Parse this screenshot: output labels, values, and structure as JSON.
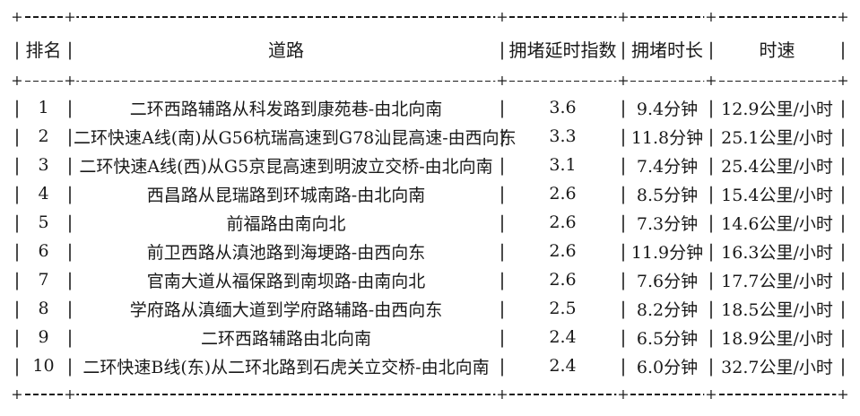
{
  "app": {
    "background_color": "#ffffff",
    "text_color": "#1a1a1a",
    "line_color": "#1a1a1a"
  },
  "table": {
    "name": "拥堵道路排名表",
    "border": {
      "corner": "+",
      "dash": "-",
      "pipe": "|"
    },
    "columns": [
      {
        "key": "rank",
        "label": "排名"
      },
      {
        "key": "road",
        "label": "道路"
      },
      {
        "key": "delay_index",
        "label": "拥堵延时指数"
      },
      {
        "key": "duration",
        "label": "拥堵时长"
      },
      {
        "key": "speed",
        "label": "时速"
      }
    ],
    "rows": [
      {
        "rank": "1",
        "road": "二环西路辅路从科发路到康苑巷-由北向南",
        "delay_index": "3.6",
        "duration": "9.4分钟",
        "speed": "12.9公里/小时"
      },
      {
        "rank": "2",
        "road": "二环快速A线(南)从G56杭瑞高速到G78汕昆高速-由西向东",
        "delay_index": "3.3",
        "duration": "11.8分钟",
        "speed": "25.1公里/小时"
      },
      {
        "rank": "3",
        "road": "二环快速A线(西)从G5京昆高速到明波立交桥-由北向南",
        "delay_index": "3.1",
        "duration": "7.4分钟",
        "speed": "25.4公里/小时"
      },
      {
        "rank": "4",
        "road": "西昌路从昆瑞路到环城南路-由北向南",
        "delay_index": "2.6",
        "duration": "8.5分钟",
        "speed": "15.4公里/小时"
      },
      {
        "rank": "5",
        "road": "前福路由南向北",
        "delay_index": "2.6",
        "duration": "7.3分钟",
        "speed": "14.6公里/小时"
      },
      {
        "rank": "6",
        "road": "前卫西路从滇池路到海埂路-由西向东",
        "delay_index": "2.6",
        "duration": "11.9分钟",
        "speed": "16.3公里/小时"
      },
      {
        "rank": "7",
        "road": "官南大道从福保路到南坝路-由南向北",
        "delay_index": "2.6",
        "duration": "7.6分钟",
        "speed": "17.7公里/小时"
      },
      {
        "rank": "8",
        "road": "学府路从滇缅大道到学府路辅路-由西向东",
        "delay_index": "2.5",
        "duration": "8.2分钟",
        "speed": "18.5公里/小时"
      },
      {
        "rank": "9",
        "road": "二环西路辅路由北向南",
        "delay_index": "2.4",
        "duration": "6.5分钟",
        "speed": "18.9公里/小时"
      },
      {
        "rank": "10",
        "road": "二环快速B线(东)从二环北路到石虎关立交桥-由北向南",
        "delay_index": "2.4",
        "duration": "6.0分钟",
        "speed": "32.7公里/小时"
      }
    ]
  }
}
